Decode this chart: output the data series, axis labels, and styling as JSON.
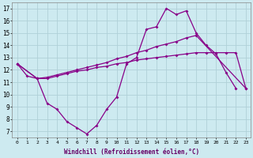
{
  "xlabel": "Windchill (Refroidissement éolien,°C)",
  "ylim": [
    6.5,
    17.5
  ],
  "yticks": [
    7,
    8,
    9,
    10,
    11,
    12,
    13,
    14,
    15,
    16,
    17
  ],
  "xticks": [
    0,
    1,
    2,
    3,
    4,
    5,
    6,
    7,
    8,
    9,
    10,
    11,
    12,
    13,
    14,
    15,
    16,
    17,
    18,
    19,
    20,
    21,
    22,
    23
  ],
  "bg_color": "#cdeaf0",
  "line_color": "#880088",
  "grid_color": "#b0d0d8",
  "line1_x": [
    0,
    1,
    2,
    3,
    4,
    5,
    6,
    7,
    8,
    9,
    10,
    11,
    12,
    13,
    14,
    15,
    16,
    17,
    18,
    19,
    20,
    21,
    22
  ],
  "line1_y": [
    12.5,
    11.5,
    11.3,
    9.3,
    8.8,
    7.8,
    7.3,
    6.8,
    7.5,
    8.8,
    9.8,
    12.5,
    13.0,
    15.3,
    15.5,
    17.0,
    16.5,
    16.8,
    15.0,
    14.0,
    13.3,
    11.8,
    10.5
  ],
  "line2_x": [
    0,
    2,
    3,
    4,
    5,
    6,
    7,
    8,
    9,
    10,
    11,
    12,
    13,
    14,
    15,
    16,
    17,
    18,
    23
  ],
  "line2_y": [
    12.5,
    11.3,
    11.4,
    11.6,
    11.8,
    12.0,
    12.2,
    12.4,
    12.6,
    12.9,
    13.1,
    13.4,
    13.6,
    13.9,
    14.1,
    14.3,
    14.6,
    14.8,
    10.5
  ],
  "line3_x": [
    0,
    2,
    3,
    4,
    5,
    6,
    7,
    8,
    9,
    10,
    11,
    12,
    13,
    14,
    15,
    16,
    17,
    18,
    19,
    20,
    21,
    22,
    23
  ],
  "line3_y": [
    12.5,
    11.3,
    11.3,
    11.5,
    11.7,
    11.9,
    12.0,
    12.2,
    12.3,
    12.5,
    12.6,
    12.8,
    12.9,
    13.0,
    13.1,
    13.2,
    13.3,
    13.4,
    13.4,
    13.4,
    13.4,
    13.4,
    10.5
  ]
}
